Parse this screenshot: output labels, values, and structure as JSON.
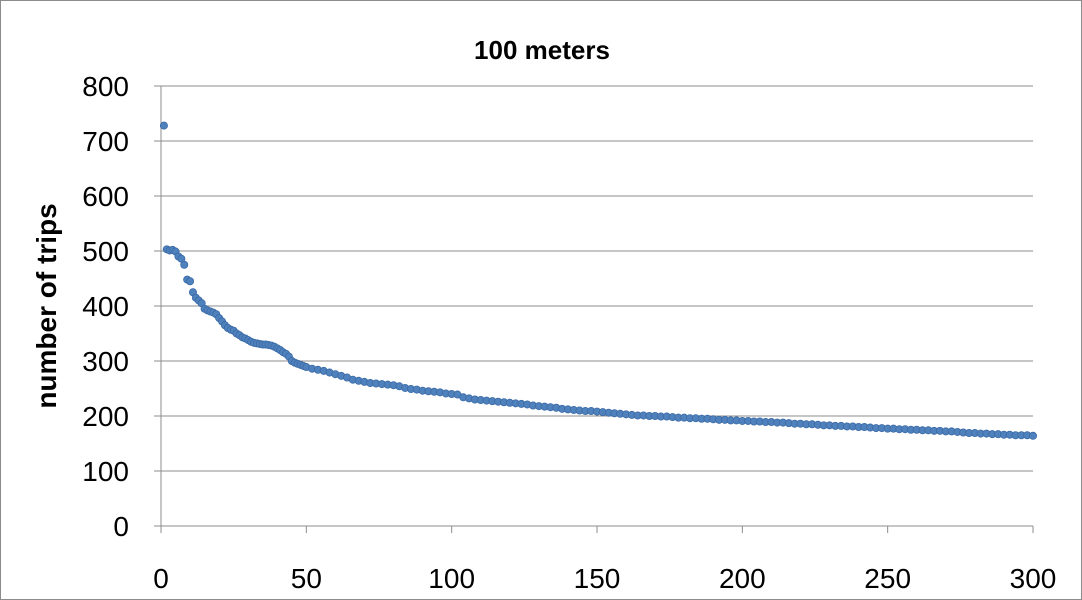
{
  "chart_data": {
    "type": "scatter",
    "title": "100 meters",
    "xlabel": "",
    "ylabel": "number of trips",
    "xlim": [
      0,
      300
    ],
    "ylim": [
      0,
      800
    ],
    "xticks": [
      0,
      50,
      100,
      150,
      200,
      250,
      300
    ],
    "yticks": [
      0,
      100,
      200,
      300,
      400,
      500,
      600,
      700,
      800
    ],
    "grid": "horizontal",
    "legend": "none",
    "marker_color": "#4f81bd",
    "series": [
      {
        "points": [
          [
            1,
            728
          ],
          [
            2,
            503
          ],
          [
            3,
            501
          ],
          [
            4,
            502
          ],
          [
            5,
            499
          ],
          [
            6,
            490
          ],
          [
            7,
            486
          ],
          [
            8,
            475
          ],
          [
            9,
            448
          ],
          [
            10,
            445
          ],
          [
            11,
            425
          ],
          [
            12,
            415
          ],
          [
            13,
            410
          ],
          [
            14,
            405
          ],
          [
            15,
            395
          ],
          [
            16,
            392
          ],
          [
            17,
            390
          ],
          [
            18,
            388
          ],
          [
            19,
            385
          ],
          [
            20,
            378
          ],
          [
            21,
            372
          ],
          [
            22,
            365
          ],
          [
            23,
            360
          ],
          [
            24,
            357
          ],
          [
            25,
            355
          ],
          [
            26,
            350
          ],
          [
            27,
            347
          ],
          [
            28,
            343
          ],
          [
            29,
            341
          ],
          [
            30,
            338
          ],
          [
            31,
            335
          ],
          [
            32,
            333
          ],
          [
            33,
            332
          ],
          [
            34,
            331
          ],
          [
            35,
            330
          ],
          [
            36,
            330
          ],
          [
            37,
            329
          ],
          [
            38,
            328
          ],
          [
            39,
            326
          ],
          [
            40,
            323
          ],
          [
            41,
            320
          ],
          [
            42,
            316
          ],
          [
            43,
            313
          ],
          [
            44,
            308
          ],
          [
            45,
            300
          ],
          [
            46,
            297
          ],
          [
            47,
            295
          ],
          [
            48,
            293
          ],
          [
            49,
            291
          ],
          [
            50,
            289
          ],
          [
            52,
            286
          ],
          [
            54,
            284
          ],
          [
            56,
            282
          ],
          [
            58,
            279
          ],
          [
            60,
            276
          ],
          [
            62,
            273
          ],
          [
            64,
            270
          ],
          [
            66,
            266
          ],
          [
            68,
            264
          ],
          [
            70,
            262
          ],
          [
            72,
            260
          ],
          [
            74,
            259
          ],
          [
            76,
            258
          ],
          [
            78,
            257
          ],
          [
            80,
            256
          ],
          [
            82,
            254
          ],
          [
            84,
            251
          ],
          [
            86,
            249
          ],
          [
            88,
            248
          ],
          [
            90,
            246
          ],
          [
            92,
            245
          ],
          [
            94,
            244
          ],
          [
            96,
            243
          ],
          [
            98,
            241
          ],
          [
            100,
            240
          ],
          [
            102,
            239
          ],
          [
            104,
            234
          ],
          [
            106,
            232
          ],
          [
            108,
            230
          ],
          [
            110,
            229
          ],
          [
            112,
            228
          ],
          [
            114,
            227
          ],
          [
            116,
            226
          ],
          [
            118,
            225
          ],
          [
            120,
            224
          ],
          [
            122,
            223
          ],
          [
            124,
            222
          ],
          [
            126,
            221
          ],
          [
            128,
            219
          ],
          [
            130,
            218
          ],
          [
            132,
            217
          ],
          [
            134,
            216
          ],
          [
            136,
            215
          ],
          [
            138,
            213
          ],
          [
            140,
            212
          ],
          [
            142,
            211
          ],
          [
            144,
            210
          ],
          [
            146,
            209
          ],
          [
            148,
            209
          ],
          [
            150,
            208
          ],
          [
            152,
            207
          ],
          [
            154,
            206
          ],
          [
            156,
            205
          ],
          [
            158,
            204
          ],
          [
            160,
            203
          ],
          [
            162,
            202
          ],
          [
            164,
            201
          ],
          [
            166,
            201
          ],
          [
            168,
            200
          ],
          [
            170,
            200
          ],
          [
            172,
            199
          ],
          [
            174,
            199
          ],
          [
            176,
            198
          ],
          [
            178,
            197
          ],
          [
            180,
            197
          ],
          [
            182,
            196
          ],
          [
            184,
            196
          ],
          [
            186,
            195
          ],
          [
            188,
            195
          ],
          [
            190,
            194
          ],
          [
            192,
            193
          ],
          [
            194,
            193
          ],
          [
            196,
            192
          ],
          [
            198,
            192
          ],
          [
            200,
            191
          ],
          [
            202,
            191
          ],
          [
            204,
            190
          ],
          [
            206,
            190
          ],
          [
            208,
            189
          ],
          [
            210,
            189
          ],
          [
            212,
            188
          ],
          [
            214,
            188
          ],
          [
            216,
            187
          ],
          [
            218,
            186
          ],
          [
            220,
            186
          ],
          [
            222,
            185
          ],
          [
            224,
            185
          ],
          [
            226,
            184
          ],
          [
            228,
            183
          ],
          [
            230,
            183
          ],
          [
            232,
            182
          ],
          [
            234,
            182
          ],
          [
            236,
            181
          ],
          [
            238,
            181
          ],
          [
            240,
            180
          ],
          [
            242,
            180
          ],
          [
            244,
            179
          ],
          [
            246,
            178
          ],
          [
            248,
            178
          ],
          [
            250,
            177
          ],
          [
            252,
            177
          ],
          [
            254,
            176
          ],
          [
            256,
            176
          ],
          [
            258,
            175
          ],
          [
            260,
            175
          ],
          [
            262,
            174
          ],
          [
            264,
            174
          ],
          [
            266,
            173
          ],
          [
            268,
            173
          ],
          [
            270,
            172
          ],
          [
            272,
            172
          ],
          [
            274,
            171
          ],
          [
            276,
            170
          ],
          [
            278,
            169
          ],
          [
            280,
            169
          ],
          [
            282,
            168
          ],
          [
            284,
            168
          ],
          [
            286,
            167
          ],
          [
            288,
            167
          ],
          [
            290,
            166
          ],
          [
            292,
            166
          ],
          [
            294,
            165
          ],
          [
            296,
            165
          ],
          [
            298,
            165
          ],
          [
            300,
            164
          ]
        ]
      }
    ]
  }
}
